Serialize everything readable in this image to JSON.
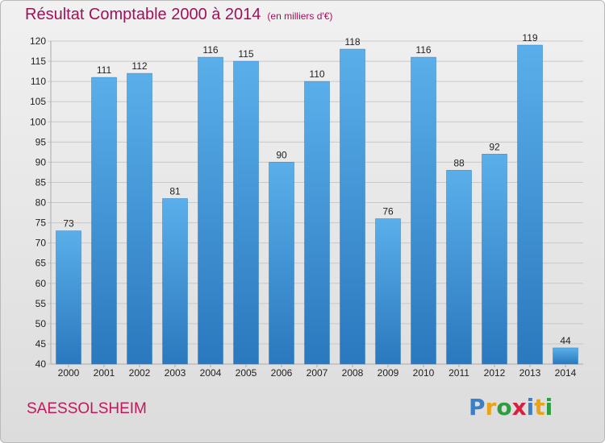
{
  "chart_data": {
    "type": "bar",
    "title": "Résultat Comptable 2000 à 2014",
    "subtitle": "(en milliers d'€)",
    "categories": [
      "2000",
      "2001",
      "2002",
      "2003",
      "2004",
      "2005",
      "2006",
      "2007",
      "2008",
      "2009",
      "2010",
      "2011",
      "2012",
      "2013",
      "2014"
    ],
    "values": [
      73,
      111,
      112,
      81,
      116,
      115,
      90,
      110,
      118,
      76,
      116,
      88,
      92,
      119,
      44
    ],
    "ylim": [
      40,
      120
    ],
    "yticks": [
      40,
      45,
      50,
      55,
      60,
      65,
      70,
      75,
      80,
      85,
      90,
      95,
      100,
      105,
      110,
      115,
      120
    ],
    "grid": true,
    "bar_color": "#3a8fd6",
    "xlabel": "",
    "ylabel": ""
  },
  "commune": "SAESSOLSHEIM",
  "logo": {
    "letters": [
      "P",
      "r",
      "o",
      "x",
      "i",
      "t",
      "i"
    ],
    "colors": [
      "#3b7fc4",
      "#e8a317",
      "#2e9d3f",
      "#d4213d",
      "#3b7fc4",
      "#e8a317",
      "#2e9d3f"
    ]
  }
}
